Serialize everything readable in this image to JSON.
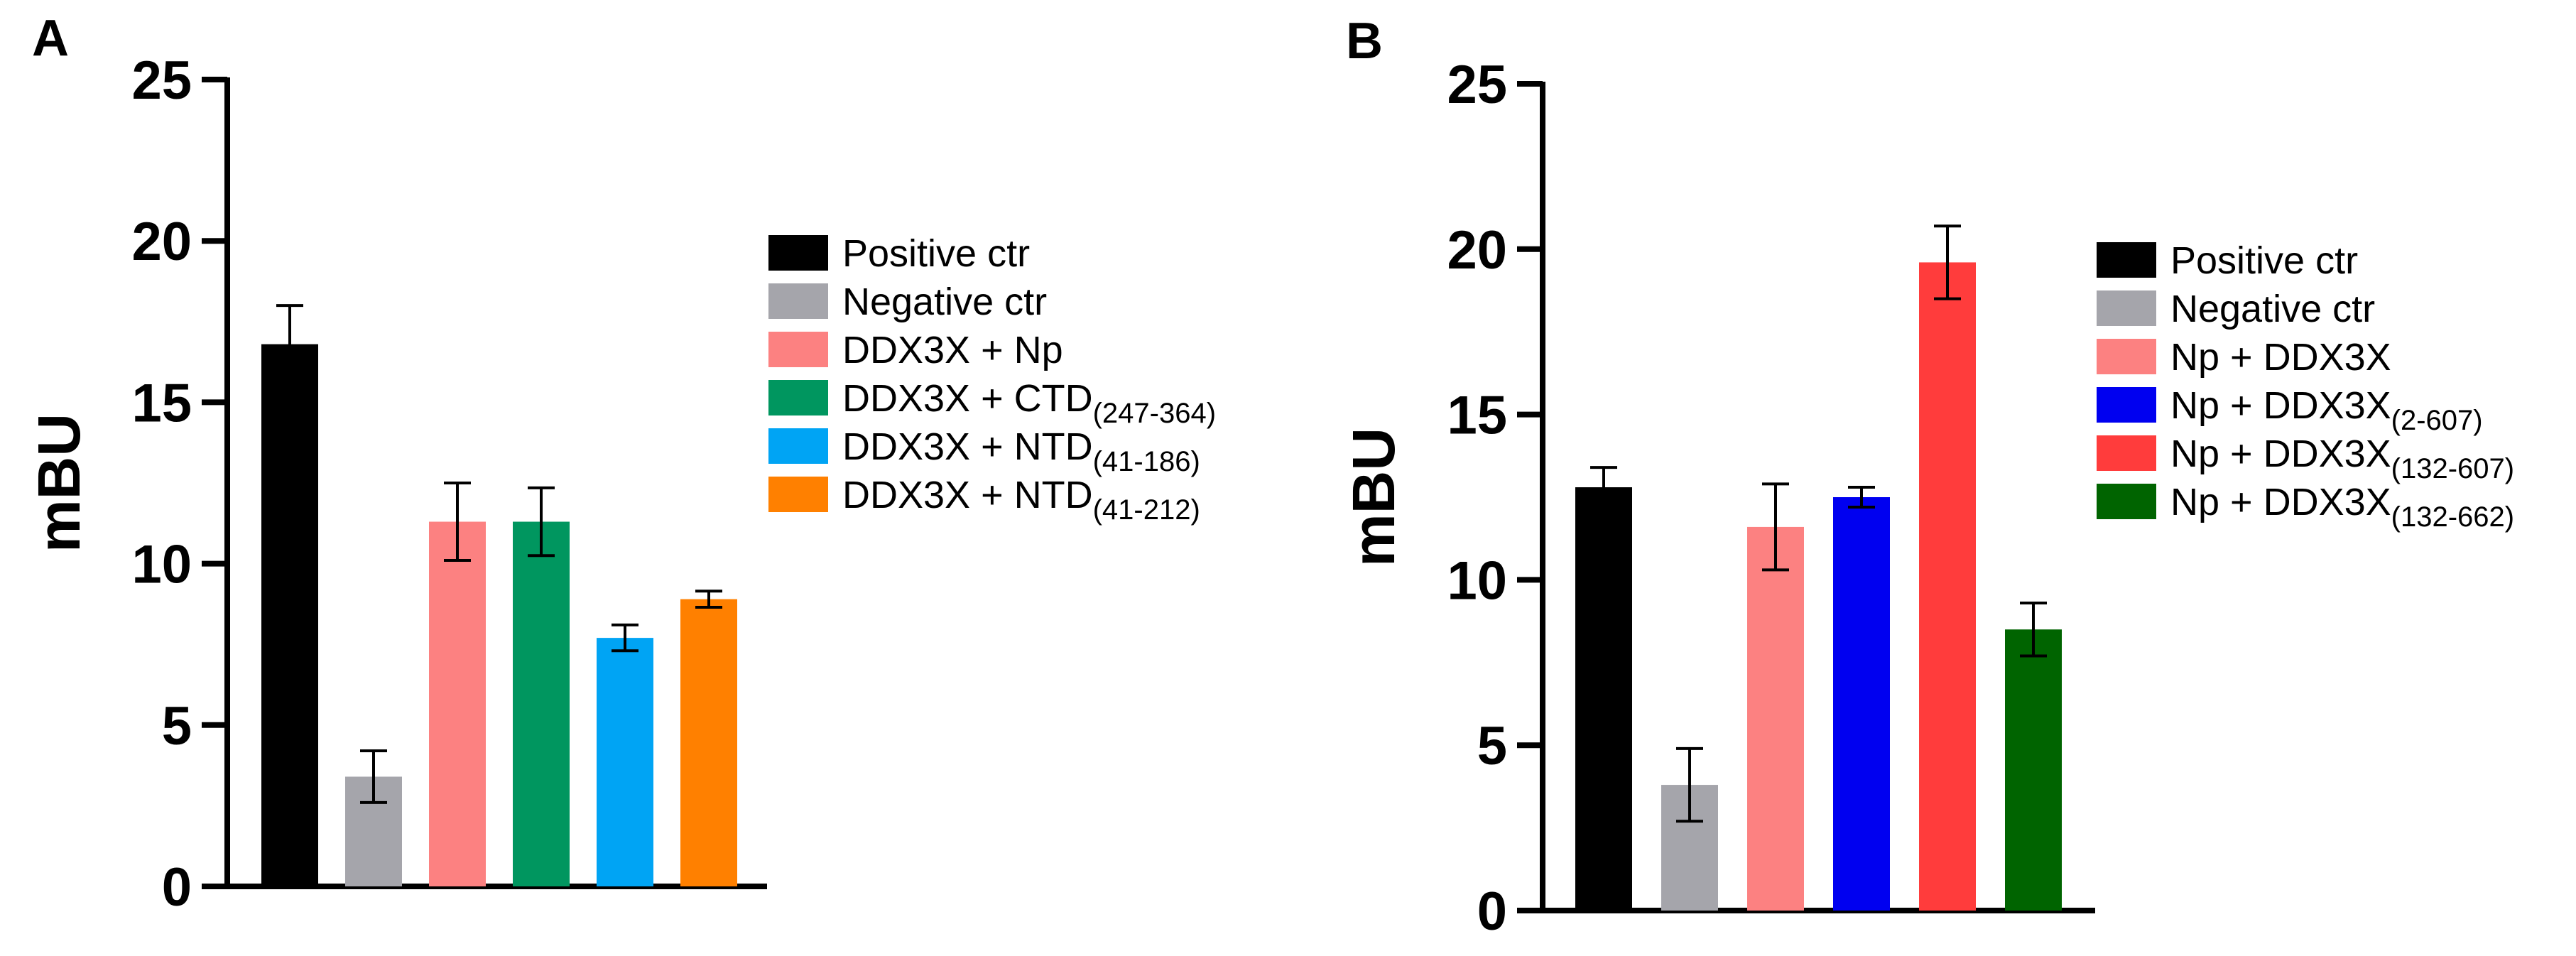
{
  "chart_data": [
    {
      "type": "bar",
      "panel": "A",
      "title": "",
      "xlabel": "",
      "ylabel": "mBU",
      "ylim": [
        0,
        25
      ],
      "yticks": [
        0,
        5,
        10,
        15,
        20,
        25
      ],
      "grid": false,
      "legend_position": "right",
      "categories": [
        {
          "label": "Positive ctr",
          "base": "Positive ctr",
          "sub": ""
        },
        {
          "label": "Negative ctr",
          "base": "Negative ctr",
          "sub": ""
        },
        {
          "label": "DDX3X + Np",
          "base": "DDX3X + Np",
          "sub": ""
        },
        {
          "label": "DDX3X + CTD(247-364)",
          "base": "DDX3X + CTD",
          "sub": "(247-364)"
        },
        {
          "label": "DDX3X + NTD(41-186)",
          "base": "DDX3X + NTD",
          "sub": "(41-186)"
        },
        {
          "label": "DDX3X + NTD(41-212)",
          "base": "DDX3X + NTD",
          "sub": "(41-212)"
        }
      ],
      "values": [
        16.8,
        3.4,
        11.3,
        11.3,
        7.7,
        8.9
      ],
      "errors": [
        1.2,
        0.8,
        1.2,
        1.05,
        0.4,
        0.25
      ],
      "colors": [
        "#000000",
        "#a5a5ab",
        "#fc8181",
        "#00965f",
        "#00a4f4",
        "#ff8000"
      ]
    },
    {
      "type": "bar",
      "panel": "B",
      "title": "",
      "xlabel": "",
      "ylabel": "mBU",
      "ylim": [
        0,
        25
      ],
      "yticks": [
        0,
        5,
        10,
        15,
        20,
        25
      ],
      "grid": false,
      "legend_position": "right",
      "categories": [
        {
          "label": "Positive ctr",
          "base": "Positive ctr",
          "sub": ""
        },
        {
          "label": "Negative ctr",
          "base": "Negative ctr",
          "sub": ""
        },
        {
          "label": "Np + DDX3X",
          "base": "Np + DDX3X",
          "sub": ""
        },
        {
          "label": "Np + DDX3X(2-607)",
          "base": "Np + DDX3X",
          "sub": "(2-607)"
        },
        {
          "label": "Np + DDX3X(132-607)",
          "base": "Np + DDX3X",
          "sub": "(132-607)"
        },
        {
          "label": "Np + DDX3X(132-662)",
          "base": "Np + DDX3X",
          "sub": "(132-662)"
        }
      ],
      "values": [
        12.8,
        3.8,
        11.6,
        12.5,
        19.6,
        8.5
      ],
      "errors": [
        0.6,
        1.1,
        1.3,
        0.3,
        1.1,
        0.8
      ],
      "colors": [
        "#000000",
        "#a5a5ab",
        "#fc8181",
        "#0000f0",
        "#ff3c3c",
        "#006400"
      ]
    }
  ]
}
